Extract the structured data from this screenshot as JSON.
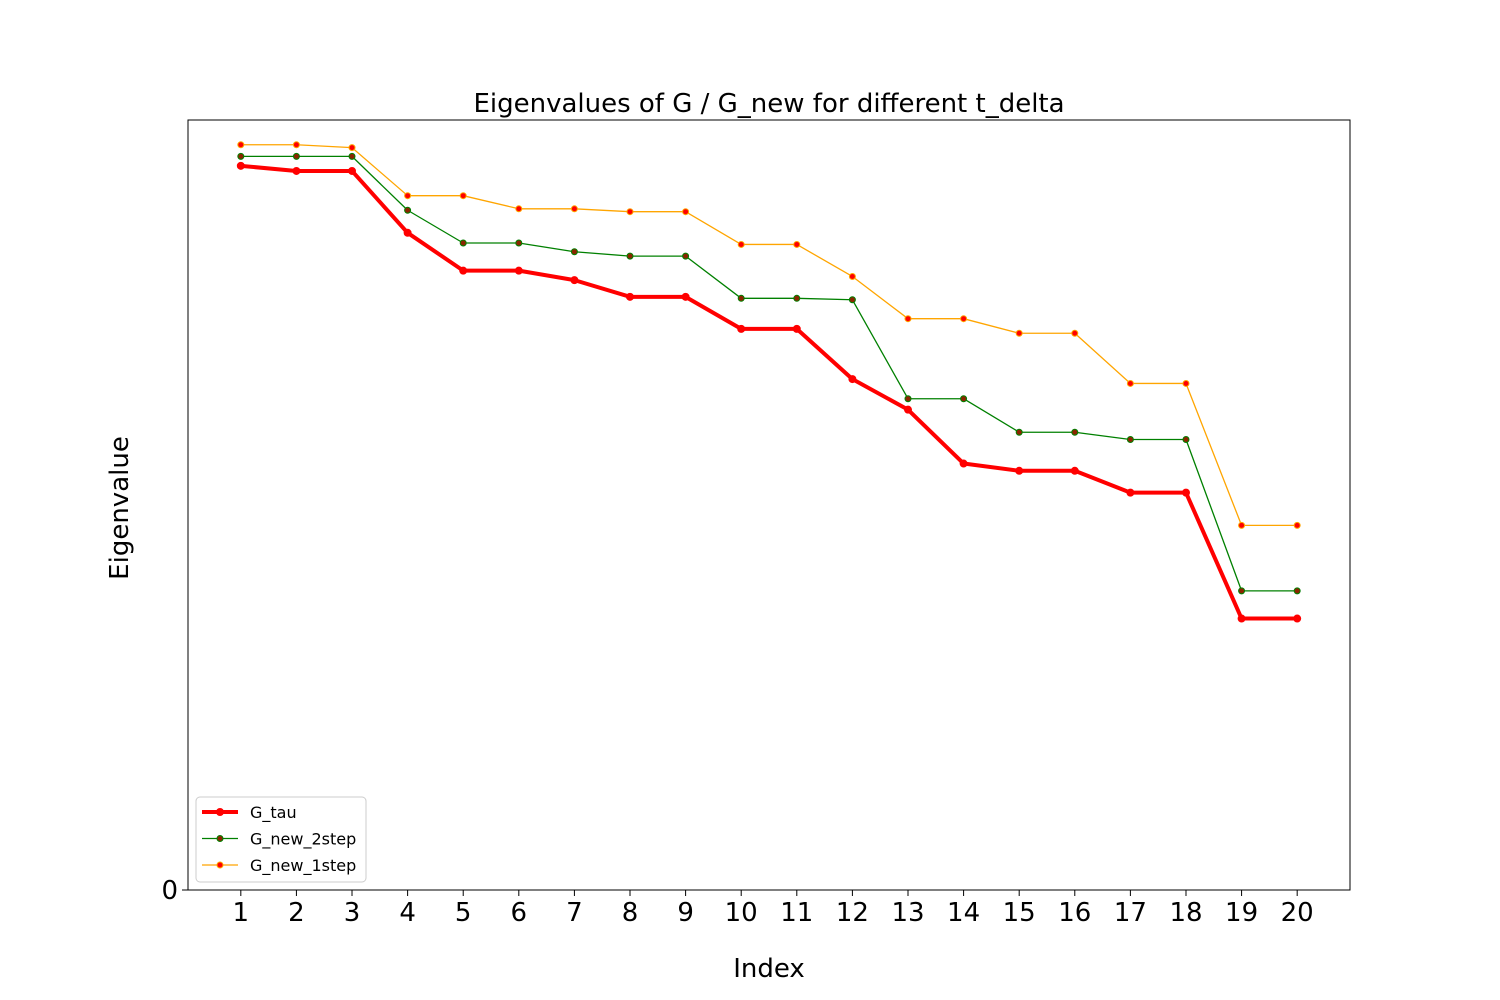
{
  "chart_data": {
    "type": "line",
    "title": "Eigenvalues of G / G_new for different t_delta",
    "xlabel": "Index",
    "ylabel": "Eigenvalue",
    "x": [
      1,
      2,
      3,
      4,
      5,
      6,
      7,
      8,
      9,
      10,
      11,
      12,
      13,
      14,
      15,
      16,
      17,
      18,
      19,
      20
    ],
    "x_tick_labels": [
      "1",
      "2",
      "3",
      "4",
      "5",
      "6",
      "7",
      "8",
      "9",
      "10",
      "11",
      "12",
      "13",
      "14",
      "15",
      "16",
      "17",
      "18",
      "19",
      "20"
    ],
    "y_tick_labels": [
      "0"
    ],
    "ylim": [
      0,
      1.058
    ],
    "grid": false,
    "legend_position": "lower-left",
    "series": [
      {
        "name": "G_tau",
        "color": "#ff0000",
        "marker_color": "#ff0000",
        "values": [
          0.995,
          0.988,
          0.988,
          0.903,
          0.851,
          0.851,
          0.838,
          0.815,
          0.815,
          0.771,
          0.771,
          0.702,
          0.66,
          0.586,
          0.576,
          0.576,
          0.546,
          0.546,
          0.373,
          0.373
        ]
      },
      {
        "name": "G_new_2step",
        "color": "#008000",
        "marker_color": "#8b2500",
        "values": [
          1.008,
          1.008,
          1.008,
          0.934,
          0.889,
          0.889,
          0.877,
          0.871,
          0.871,
          0.813,
          0.813,
          0.811,
          0.675,
          0.675,
          0.629,
          0.629,
          0.619,
          0.619,
          0.411,
          0.411
        ]
      },
      {
        "name": "G_new_1step",
        "color": "#ffa500",
        "marker_color": "#ff0000",
        "values": [
          1.024,
          1.024,
          1.02,
          0.954,
          0.954,
          0.936,
          0.936,
          0.932,
          0.932,
          0.887,
          0.887,
          0.843,
          0.785,
          0.785,
          0.765,
          0.765,
          0.696,
          0.696,
          0.501,
          0.501
        ]
      }
    ]
  }
}
